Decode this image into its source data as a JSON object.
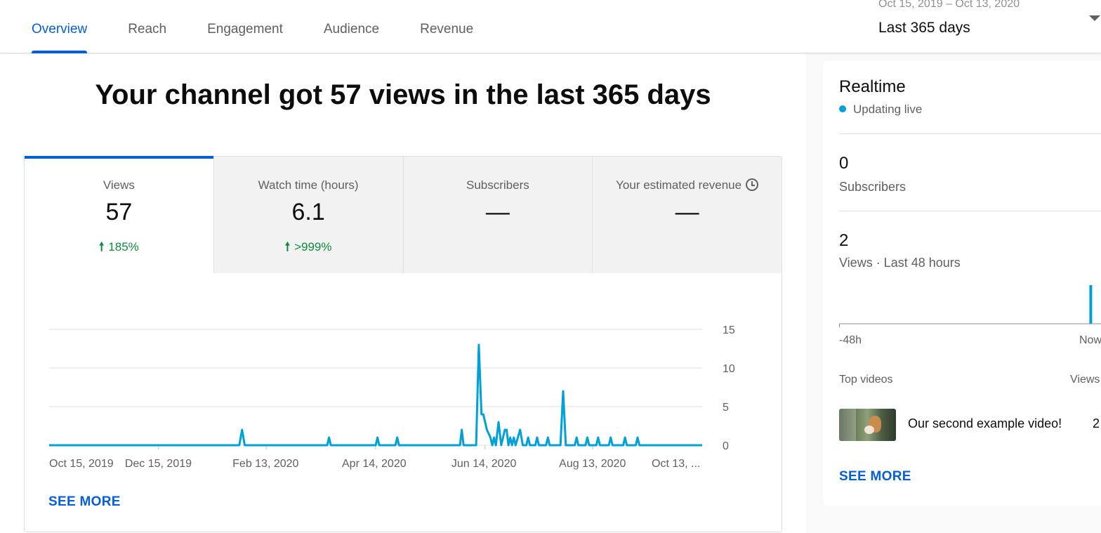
{
  "tabs": [
    {
      "label": "Overview",
      "active": true
    },
    {
      "label": "Reach",
      "active": false
    },
    {
      "label": "Engagement",
      "active": false
    },
    {
      "label": "Audience",
      "active": false
    },
    {
      "label": "Revenue",
      "active": false
    }
  ],
  "date_picker": {
    "range": "Oct 15, 2019 – Oct 13, 2020",
    "period": "Last 365 days"
  },
  "headline": "Your channel got 57 views in the last 365 days",
  "metrics": [
    {
      "label": "Views",
      "value": "57",
      "delta": "185%",
      "delta_arrow": "🠕"
    },
    {
      "label": "Watch time (hours)",
      "value": "6.1",
      "delta": ">999%",
      "delta_arrow": "🠕"
    },
    {
      "label": "Subscribers",
      "value": "—",
      "delta": "",
      "delta_arrow": ""
    },
    {
      "label": "Your estimated revenue",
      "value": "—",
      "delta": "",
      "delta_arrow": ""
    }
  ],
  "see_more_label": "SEE MORE",
  "chart_data": {
    "type": "line",
    "series": [
      {
        "color": "#00a0d8",
        "points": [
          [
            0,
            0
          ],
          [
            106,
            0
          ],
          [
            107.5,
            2
          ],
          [
            109,
            0
          ],
          [
            155,
            0
          ],
          [
            156,
            1
          ],
          [
            157,
            0
          ],
          [
            182,
            0
          ],
          [
            183,
            1
          ],
          [
            184,
            0
          ],
          [
            193,
            0
          ],
          [
            194,
            1
          ],
          [
            195,
            0
          ],
          [
            229,
            0
          ],
          [
            230,
            2
          ],
          [
            231,
            0
          ],
          [
            238,
            0
          ],
          [
            239.5,
            13
          ],
          [
            241,
            4
          ],
          [
            242,
            4
          ],
          [
            244,
            2
          ],
          [
            246,
            1
          ],
          [
            247,
            0
          ],
          [
            248,
            1
          ],
          [
            249,
            0
          ],
          [
            250.5,
            3
          ],
          [
            252,
            0
          ],
          [
            254,
            2
          ],
          [
            255,
            2
          ],
          [
            256,
            0
          ],
          [
            257,
            1
          ],
          [
            258,
            0
          ],
          [
            259,
            1
          ],
          [
            260,
            0
          ],
          [
            262.5,
            2
          ],
          [
            264,
            0
          ],
          [
            266,
            0
          ],
          [
            267,
            1
          ],
          [
            268,
            0
          ],
          [
            271,
            0
          ],
          [
            272,
            1
          ],
          [
            273,
            0
          ],
          [
            277,
            0
          ],
          [
            278,
            1
          ],
          [
            279,
            0
          ],
          [
            285,
            0
          ],
          [
            286.5,
            7
          ],
          [
            288,
            0
          ],
          [
            293,
            0
          ],
          [
            294,
            1
          ],
          [
            295,
            0
          ],
          [
            299,
            0
          ],
          [
            300,
            1
          ],
          [
            301,
            0
          ],
          [
            305,
            0
          ],
          [
            306,
            1
          ],
          [
            307,
            0
          ],
          [
            312,
            0
          ],
          [
            313,
            1
          ],
          [
            314,
            0
          ],
          [
            320,
            0
          ],
          [
            321,
            1
          ],
          [
            322,
            0
          ],
          [
            327,
            0
          ],
          [
            328,
            1
          ],
          [
            329,
            0
          ],
          [
            364,
            0
          ]
        ]
      }
    ],
    "x_range": [
      0,
      364
    ],
    "y_range": [
      0,
      15
    ],
    "y_ticks": [
      0,
      5,
      10,
      15
    ],
    "x_ticks": [
      {
        "at": 0,
        "label": "Oct 15, 2019"
      },
      {
        "at": 61,
        "label": "Dec 15, 2019"
      },
      {
        "at": 121,
        "label": "Feb 13, 2020"
      },
      {
        "at": 182,
        "label": "Apr 14, 2020"
      },
      {
        "at": 243,
        "label": "Jun 14, 2020"
      },
      {
        "at": 303,
        "label": "Aug 13, 2020"
      },
      {
        "at": 364,
        "label": "Oct 13, ..."
      }
    ],
    "grid": true
  },
  "realtime": {
    "title": "Realtime",
    "status": "Updating live",
    "subscribers_value": "0",
    "subscribers_label": "Subscribers",
    "views_value": "2",
    "views_label": "Views · Last 48 hours",
    "axis_start": "-48h",
    "axis_end": "Now",
    "spark": {
      "bars": [
        {
          "hour": 47,
          "views": 2
        }
      ],
      "hours": 48,
      "max": 2
    },
    "top_videos_label": "Top videos",
    "views_col_label": "Views",
    "videos": [
      {
        "title": "Our second example video!",
        "views": "2"
      }
    ]
  }
}
